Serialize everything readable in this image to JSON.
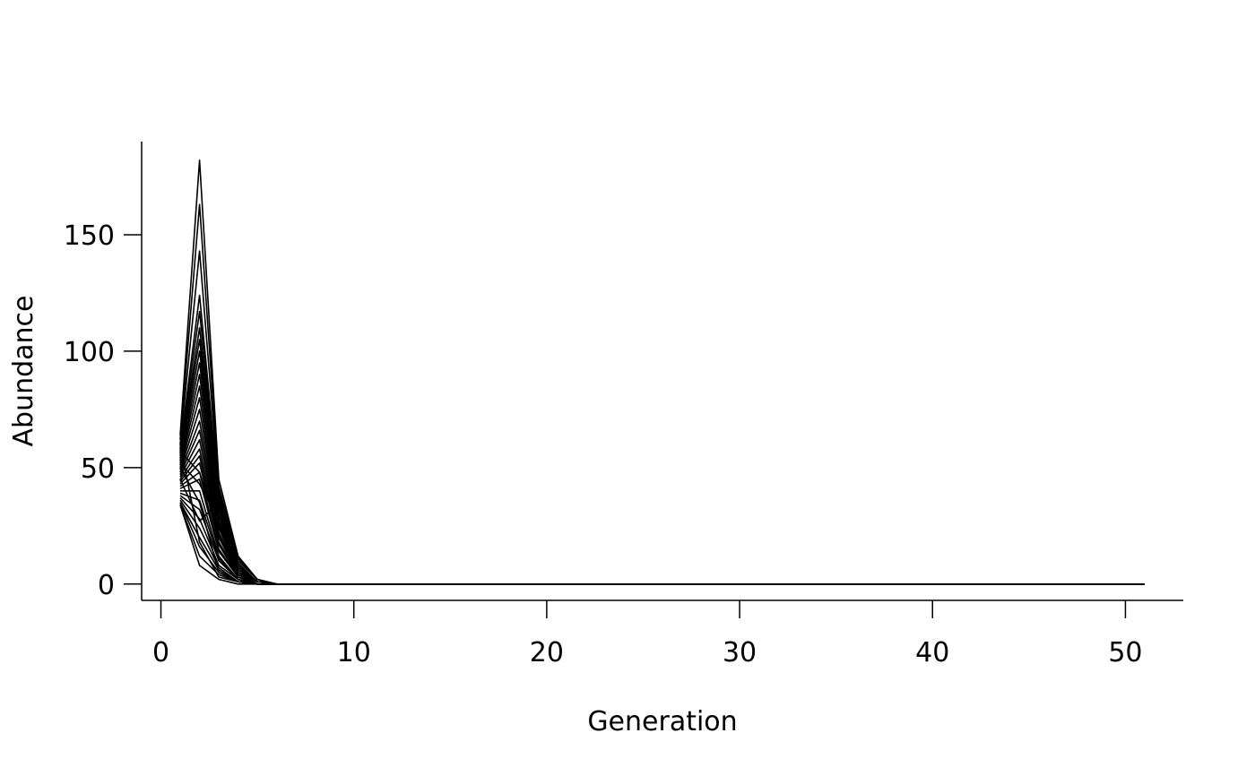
{
  "chart_data": {
    "type": "line",
    "title": "",
    "xlabel": "Generation",
    "ylabel": "Abundance",
    "xlim": [
      -1,
      53
    ],
    "ylim": [
      -7,
      190
    ],
    "x_ticks": [
      0,
      10,
      20,
      30,
      40,
      50
    ],
    "y_ticks": [
      0,
      50,
      100,
      150
    ],
    "grid": false,
    "legend": "none",
    "line_color": "#000000",
    "x": [
      1,
      2,
      3,
      4,
      5,
      6,
      51
    ],
    "series": [
      {
        "values": [
          64,
          182,
          45,
          12,
          2,
          0,
          0
        ]
      },
      {
        "values": [
          62,
          163,
          42,
          11,
          2,
          0,
          0
        ]
      },
      {
        "values": [
          60,
          143,
          40,
          10,
          2,
          0,
          0
        ]
      },
      {
        "values": [
          58,
          124,
          38,
          9,
          1,
          0,
          0
        ]
      },
      {
        "values": [
          57,
          117,
          36,
          9,
          1,
          0,
          0
        ]
      },
      {
        "values": [
          56,
          110,
          35,
          8,
          1,
          0,
          0
        ]
      },
      {
        "values": [
          55,
          105,
          33,
          8,
          1,
          0,
          0
        ]
      },
      {
        "values": [
          54,
          100,
          32,
          7,
          1,
          0,
          0
        ]
      },
      {
        "values": [
          53,
          95,
          30,
          7,
          1,
          0,
          0
        ]
      },
      {
        "values": [
          52,
          90,
          29,
          6,
          1,
          0,
          0
        ]
      },
      {
        "values": [
          51,
          85,
          27,
          6,
          1,
          0,
          0
        ]
      },
      {
        "values": [
          50,
          80,
          26,
          6,
          1,
          0,
          0
        ]
      },
      {
        "values": [
          49,
          75,
          25,
          5,
          1,
          0,
          0
        ]
      },
      {
        "values": [
          48,
          70,
          24,
          5,
          1,
          0,
          0
        ]
      },
      {
        "values": [
          47,
          66,
          22,
          5,
          1,
          0,
          0
        ]
      },
      {
        "values": [
          46,
          62,
          21,
          4,
          1,
          0,
          0
        ]
      },
      {
        "values": [
          45,
          58,
          20,
          4,
          0,
          0,
          0
        ]
      },
      {
        "values": [
          44,
          55,
          18,
          4,
          0,
          0,
          0
        ]
      },
      {
        "values": [
          43,
          52,
          17,
          3,
          0,
          0,
          0
        ]
      },
      {
        "values": [
          42,
          48,
          15,
          3,
          0,
          0,
          0
        ]
      },
      {
        "values": [
          41,
          45,
          14,
          3,
          0,
          0,
          0
        ]
      },
      {
        "values": [
          40,
          40,
          12,
          2,
          0,
          0,
          0
        ]
      },
      {
        "values": [
          39,
          36,
          11,
          2,
          0,
          0,
          0
        ]
      },
      {
        "values": [
          38,
          32,
          10,
          2,
          0,
          0,
          0
        ]
      },
      {
        "values": [
          37,
          28,
          8,
          2,
          0,
          0,
          0
        ]
      },
      {
        "values": [
          36,
          24,
          7,
          1,
          0,
          0,
          0
        ]
      },
      {
        "values": [
          35,
          20,
          6,
          1,
          0,
          0,
          0
        ]
      },
      {
        "values": [
          35,
          16,
          5,
          1,
          0,
          0,
          0
        ]
      },
      {
        "values": [
          34,
          12,
          4,
          1,
          0,
          0,
          0
        ]
      },
      {
        "values": [
          34,
          8,
          2,
          0,
          0,
          0,
          0
        ]
      },
      {
        "values": [
          45,
          27,
          35,
          4,
          0,
          0,
          0
        ]
      },
      {
        "values": [
          52,
          43,
          27,
          5,
          0,
          0,
          0
        ]
      },
      {
        "values": [
          50,
          35,
          5,
          1,
          0,
          0,
          0
        ]
      },
      {
        "values": [
          60,
          18,
          3,
          1,
          0,
          0,
          0
        ]
      },
      {
        "values": [
          57,
          48,
          22,
          3,
          0,
          0,
          0
        ]
      }
    ]
  }
}
